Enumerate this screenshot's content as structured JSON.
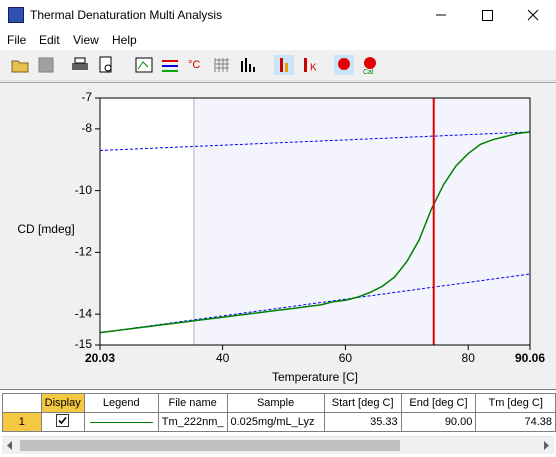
{
  "window": {
    "title": "Thermal Denaturation Multi Analysis"
  },
  "menu": [
    "File",
    "Edit",
    "View",
    "Help"
  ],
  "chart_data": {
    "type": "line",
    "x_label": "Temperature [C]",
    "y_label": "CD [mdeg]",
    "x": [
      20,
      22,
      24,
      26,
      28,
      30,
      32,
      34,
      36,
      38,
      40,
      42,
      44,
      46,
      48,
      50,
      52,
      54,
      56,
      58,
      60,
      62,
      64,
      66,
      68,
      70,
      72,
      74,
      76,
      78,
      80,
      82,
      84,
      86,
      88,
      90
    ],
    "series": [
      {
        "color": "#008000",
        "values": [
          -14.6,
          -14.55,
          -14.5,
          -14.45,
          -14.4,
          -14.35,
          -14.3,
          -14.25,
          -14.2,
          -14.15,
          -14.1,
          -14.05,
          -14.0,
          -13.95,
          -13.9,
          -13.85,
          -13.8,
          -13.75,
          -13.7,
          -13.6,
          -13.55,
          -13.45,
          -13.3,
          -13.1,
          -12.8,
          -12.3,
          -11.6,
          -10.6,
          -9.8,
          -9.2,
          -8.8,
          -8.5,
          -8.35,
          -8.25,
          -8.15,
          -8.1
        ]
      }
    ],
    "baselines": {
      "color": "#0000ff",
      "lines": [
        {
          "x": [
            20.03,
            90.06
          ],
          "values": [
            -8.7,
            -8.1
          ]
        },
        {
          "x": [
            20.03,
            90.06
          ],
          "values": [
            -14.6,
            -12.7
          ]
        }
      ]
    },
    "tm": 74.38,
    "tm_color": "#e00000",
    "analysis_range": [
      35.33,
      90.0
    ],
    "range_color": "#f4f4fc",
    "xlim": [
      20.03,
      90.06
    ],
    "ylim": [
      -15,
      -7
    ],
    "xticks": [
      20.03,
      40,
      60,
      80,
      90.06
    ],
    "yticks": [
      -15,
      -14,
      -12,
      -10,
      -8,
      -7
    ]
  },
  "table": {
    "headers": [
      "Display",
      "Legend",
      "File name",
      "Sample",
      "Start [deg C]",
      "End [deg C]",
      "Tm [deg C]"
    ],
    "rows": [
      {
        "number": "1",
        "display": true,
        "file_name": "Tm_222nm_",
        "sample": "0.025mg/mL_Lyz",
        "start": "35.33",
        "end": "90.00",
        "tm": "74.38"
      }
    ]
  }
}
